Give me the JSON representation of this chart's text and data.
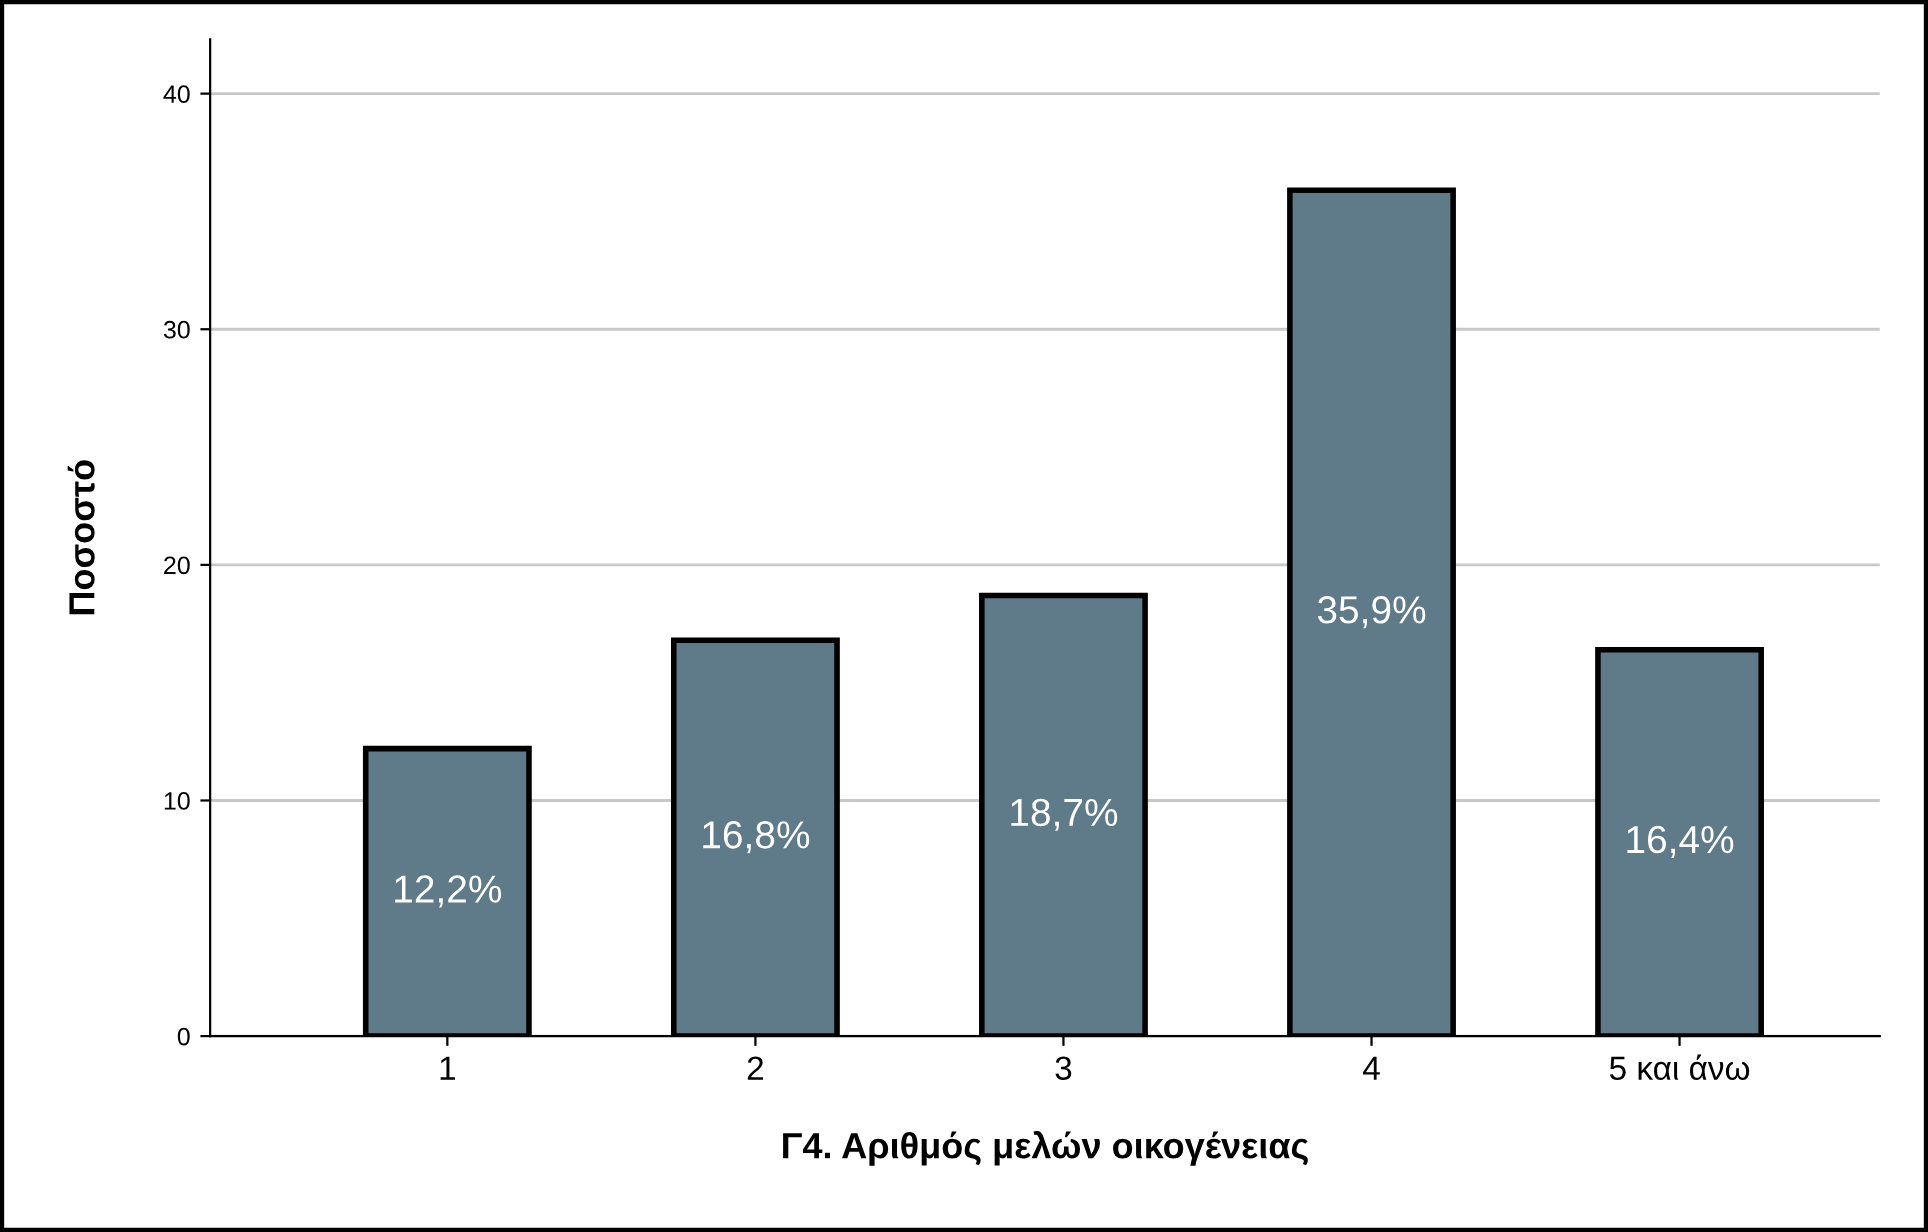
{
  "chart_data": {
    "type": "bar",
    "xlabel": "Γ4. Αριθμός μελών οικογένειας",
    "ylabel": "Ποσοστό",
    "categories": [
      "1",
      "2",
      "3",
      "4",
      "5 και άνω"
    ],
    "values": [
      12.2,
      16.8,
      18.7,
      35.9,
      16.4
    ],
    "value_labels": [
      "12,2%",
      "16,8%",
      "18,7%",
      "35,9%",
      "16,4%"
    ],
    "color": "#5f7a88",
    "ylim": [
      0,
      42.3
    ],
    "yticks": [
      0,
      10,
      20,
      30,
      40
    ],
    "grid": "y"
  }
}
